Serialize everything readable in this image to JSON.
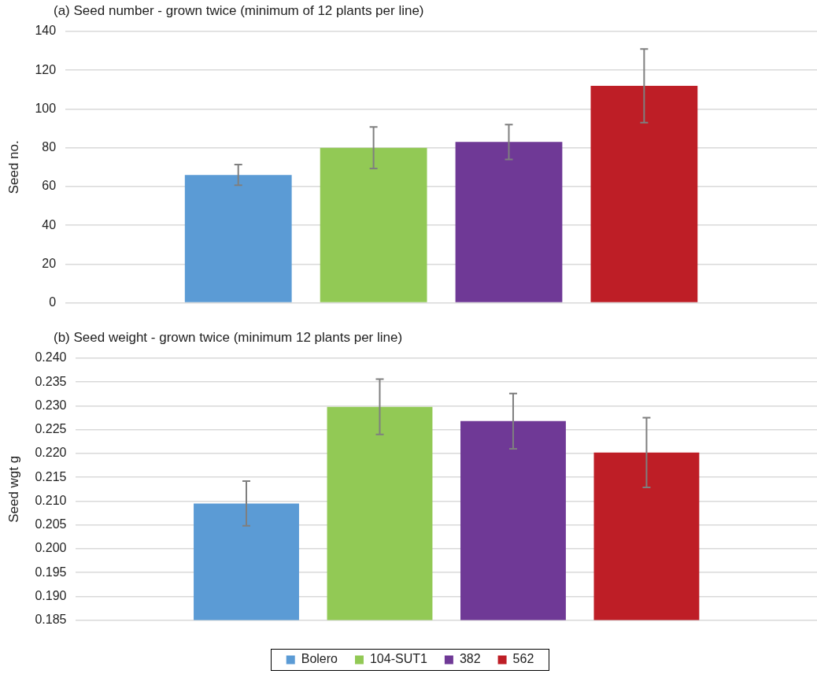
{
  "chart_data": [
    {
      "type": "bar",
      "title": "(a) Seed number - grown twice (minimum of 12 plants per line)",
      "ylabel": "Seed no.",
      "categories": [
        null
      ],
      "ylim": [
        0,
        140
      ],
      "yticks": [
        0,
        20,
        40,
        60,
        80,
        100,
        120,
        140
      ],
      "grid": "y",
      "legend": false,
      "series": [
        {
          "color": "#5b9bd5",
          "values": [
            66
          ],
          "errors": [
            5.3
          ]
        },
        {
          "color": "#92c955",
          "values": [
            80
          ],
          "errors": [
            10.7
          ]
        },
        {
          "color": "#6f3996",
          "values": [
            83
          ],
          "errors": [
            9
          ]
        },
        {
          "color": "#be1e26",
          "values": [
            112
          ],
          "errors": [
            19
          ]
        }
      ]
    },
    {
      "type": "bar",
      "title": "(b) Seed weight - grown twice (minimum 12 plants per line)",
      "ylabel": "Seed wgt g",
      "categories": [
        null
      ],
      "ylim": [
        0.185,
        0.24
      ],
      "yticks": [
        0.185,
        {
          "value": 0.19,
          "label": "0.190"
        },
        0.195,
        {
          "value": 0.2,
          "label": "0.200"
        },
        0.205,
        {
          "value": 0.21,
          "label": "0.210"
        },
        0.215,
        {
          "value": 0.22,
          "label": "0.220"
        },
        0.225,
        {
          "value": 0.23,
          "label": "0.230"
        },
        0.235,
        {
          "value": 0.24,
          "label": "0.240"
        }
      ],
      "grid": "y",
      "legend": "bottom",
      "series": [
        {
          "name": "Bolero",
          "color": "#5b9bd5",
          "values": [
            0.2095
          ],
          "errors": [
            0.0047
          ]
        },
        {
          "name": "104-SUT1",
          "color": "#92c955",
          "values": [
            0.2298
          ],
          "errors": [
            0.0058
          ]
        },
        {
          "name": "382",
          "color": "#6f3996",
          "values": [
            0.2268
          ],
          "errors": [
            0.0058
          ]
        },
        {
          "name": "562",
          "color": "#be1e26",
          "values": [
            0.2202
          ],
          "errors": [
            0.0073
          ]
        }
      ]
    }
  ]
}
